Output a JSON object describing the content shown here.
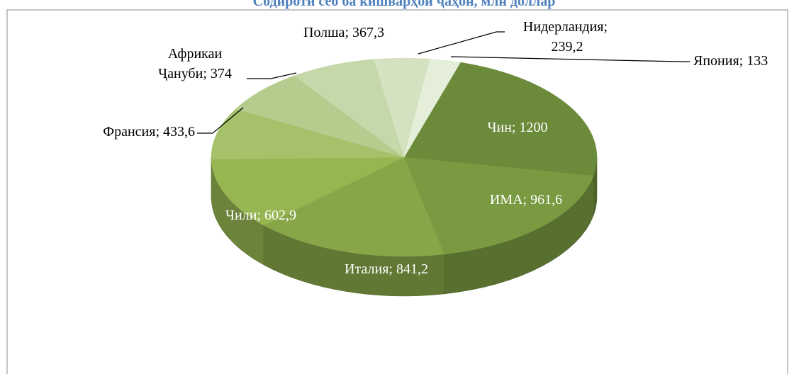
{
  "chart_data": {
    "type": "pie3d",
    "title": "Содироти себ ба кишварҳои ҷаҳон, млн доллар",
    "categories": [
      "Чин",
      "ИМА",
      "Италия",
      "Чили",
      "Франсия",
      "Африкаи Ҷануби",
      "Полша",
      "Нидерландия",
      "Япония"
    ],
    "values": [
      1200,
      961.6,
      841.2,
      602.9,
      433.6,
      374,
      367.3,
      239.2,
      133
    ],
    "value_labels": [
      "1200",
      "961,6",
      "841,2",
      "602,9",
      "433,6",
      "374",
      "367,3",
      "239,2",
      "133"
    ],
    "label_separator": "; ",
    "colors": [
      "#6b8a3a",
      "#799a41",
      "#87a648",
      "#96b652",
      "#a5c26b",
      "#b5cc8e",
      "#c5d8aa",
      "#d5e2c2",
      "#e4eed8"
    ]
  }
}
